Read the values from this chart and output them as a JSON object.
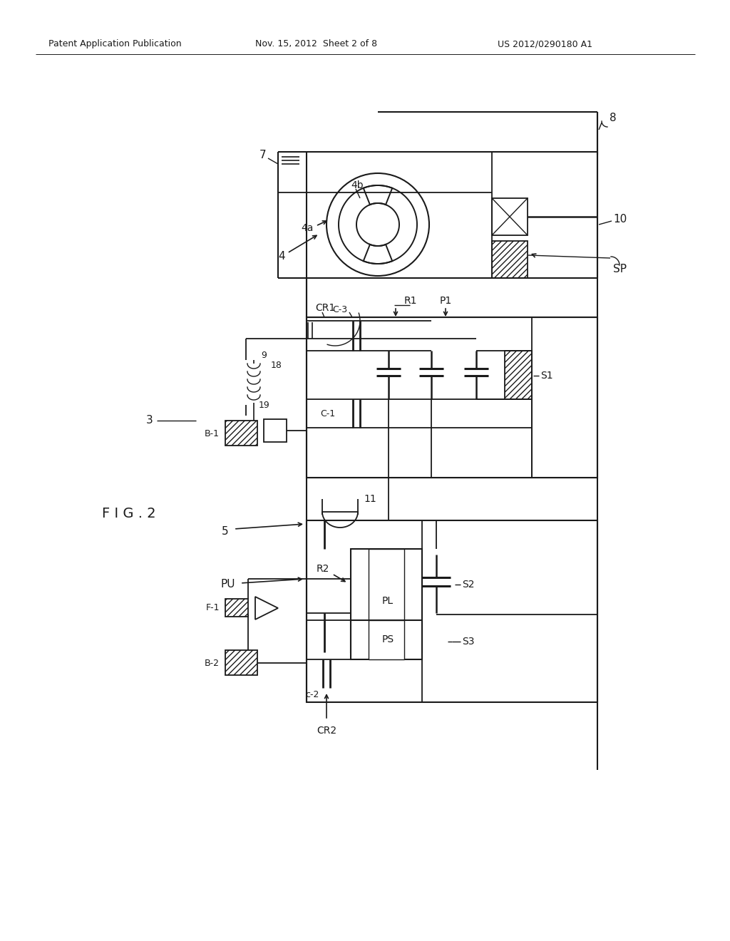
{
  "header_left": "Patent Application Publication",
  "header_mid": "Nov. 15, 2012  Sheet 2 of 8",
  "header_right": "US 2012/0290180 A1",
  "fig_label": "F I G . 2",
  "bg_color": "#ffffff",
  "lc": "#1a1a1a",
  "tc": "#1a1a1a"
}
